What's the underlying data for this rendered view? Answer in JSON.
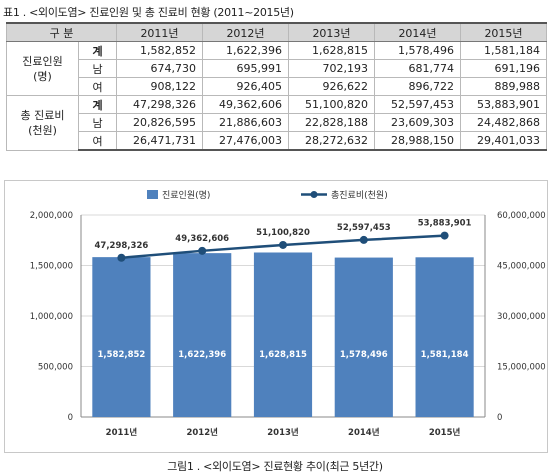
{
  "table": {
    "title": "표1 . <외이도염> 진료인원 및 총 진료비 현황 (2011~2015년)",
    "header": [
      "구  분",
      "",
      "2011년",
      "2012년",
      "2013년",
      "2014년",
      "2015년"
    ],
    "groups": [
      {
        "label_line1": "진료인원",
        "label_line2": "(명)",
        "rows": [
          {
            "sub": "계",
            "values": [
              "1,582,852",
              "1,622,396",
              "1,628,815",
              "1,578,496",
              "1,581,184"
            ]
          },
          {
            "sub": "남",
            "values": [
              "674,730",
              "695,991",
              "702,193",
              "681,774",
              "691,196"
            ]
          },
          {
            "sub": "여",
            "values": [
              "908,122",
              "926,405",
              "926,622",
              "896,722",
              "889,988"
            ]
          }
        ]
      },
      {
        "label_line1": "총 진료비",
        "label_line2": "(천원)",
        "rows": [
          {
            "sub": "계",
            "values": [
              "47,298,326",
              "49,362,606",
              "51,100,820",
              "52,597,453",
              "53,883,901"
            ]
          },
          {
            "sub": "남",
            "values": [
              "20,826,595",
              "21,886,603",
              "22,828,188",
              "23,609,303",
              "24,482,868"
            ]
          },
          {
            "sub": "여",
            "values": [
              "26,471,731",
              "27,476,003",
              "28,272,632",
              "28,988,150",
              "29,401,033"
            ]
          }
        ]
      }
    ]
  },
  "chart_data": {
    "type": "bar",
    "categories": [
      "2011년",
      "2012년",
      "2013년",
      "2014년",
      "2015년"
    ],
    "series": [
      {
        "name": "진료인원(명)",
        "kind": "bar",
        "axis": "left",
        "color": "#4f81bd",
        "values": [
          1582852,
          1622396,
          1628815,
          1578496,
          1581184
        ],
        "labels": [
          "1,582,852",
          "1,622,396",
          "1,628,815",
          "1,578,496",
          "1,581,184"
        ]
      },
      {
        "name": "총진료비(천원)",
        "kind": "line",
        "axis": "right",
        "color": "#1f4e79",
        "values": [
          47298326,
          49362606,
          51100820,
          52597453,
          53883901
        ],
        "labels": [
          "47,298,326",
          "49,362,606",
          "51,100,820",
          "52,597,453",
          "53,883,901"
        ]
      }
    ],
    "left_axis": {
      "ylim": [
        0,
        2000000
      ],
      "ticks": [
        "0",
        "500,000",
        "1,000,000",
        "1,500,000",
        "2,000,000"
      ]
    },
    "right_axis": {
      "ylim": [
        0,
        60000000
      ],
      "ticks": [
        "0",
        "15,000,000",
        "30,000,000",
        "45,000,000",
        "60,000,000"
      ]
    },
    "grid": true,
    "legend_position": "top"
  },
  "figure": {
    "caption": "그림1 . <외이도염> 진료현황 추이(최근 5년간)"
  }
}
